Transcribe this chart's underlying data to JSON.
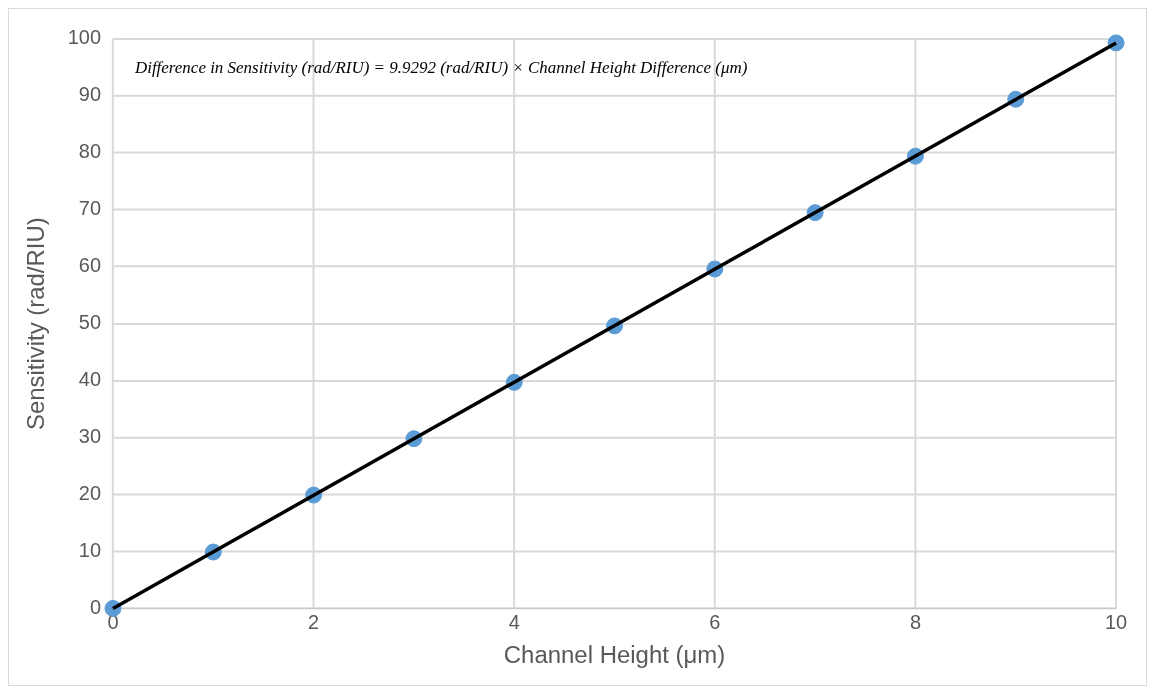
{
  "chart_data": {
    "type": "scatter",
    "xlabel": "Channel Height (μm)",
    "ylabel": "Sensitivity (rad/RIU)",
    "annotations": [
      "Difference in Sensitivity (rad/RIU) = 9.9292 (rad/RIU) × Channel Height Difference (μm)"
    ],
    "xlim": [
      0,
      10
    ],
    "xticks": [
      0,
      2,
      4,
      6,
      8,
      10
    ],
    "ylim": [
      0,
      100
    ],
    "yticks": [
      0,
      10,
      20,
      30,
      40,
      50,
      60,
      70,
      80,
      90,
      100
    ],
    "grid": true,
    "legend": false,
    "series": [
      {
        "type": "scatter",
        "color": "#5b9bd5",
        "marker": "circle",
        "x": [
          0,
          1,
          2,
          3,
          4,
          5,
          6,
          7,
          8,
          9,
          10
        ],
        "values": [
          0,
          9.9,
          19.9,
          29.8,
          39.7,
          49.6,
          59.6,
          69.5,
          79.4,
          89.4,
          99.3
        ]
      },
      {
        "type": "line",
        "color": "#000000",
        "marker": "none",
        "x": [
          0,
          10
        ],
        "values": [
          0,
          99.3
        ]
      }
    ]
  }
}
